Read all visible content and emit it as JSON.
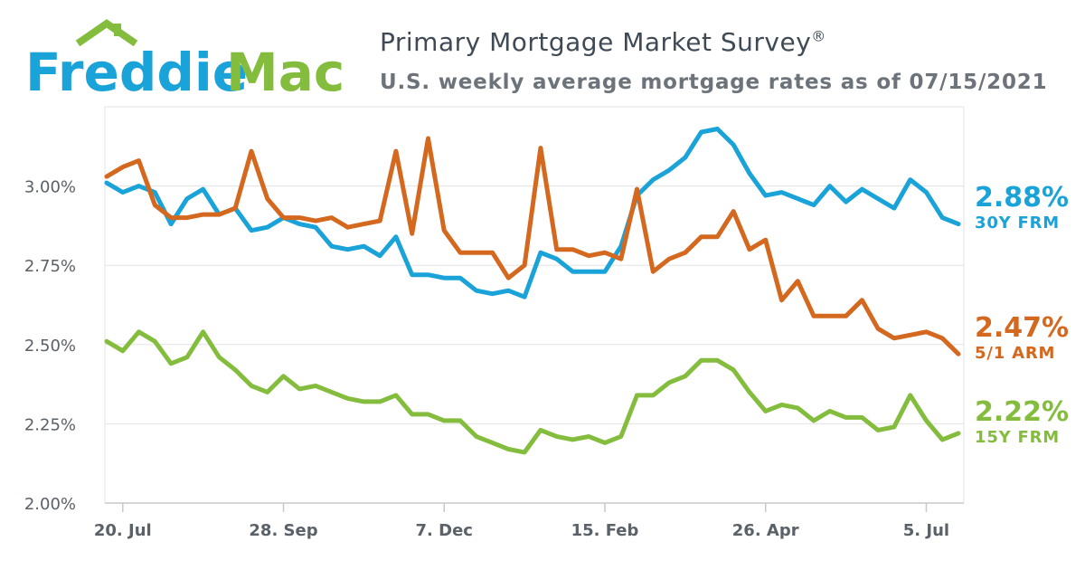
{
  "logo": {
    "text_a": "Freddie",
    "text_b": "Mac"
  },
  "header": {
    "title": "Primary Mortgage Market Survey",
    "title_mark": "®",
    "subtitle": "U.S. weekly average mortgage rates as of 07/15/2021"
  },
  "colors": {
    "frm30": "#1aa3d8",
    "arm51": "#d4681f",
    "frm15": "#84bd3d",
    "logo_blue": "#1aa3d8",
    "logo_green": "#84bd3d",
    "grid": "#e3e3e3",
    "tick": "#5b6168"
  },
  "end_labels": [
    {
      "value": "2.88%",
      "label": "30Y FRM",
      "color": "#1aa3d8"
    },
    {
      "value": "2.47%",
      "label": "5/1 ARM",
      "color": "#d4681f"
    },
    {
      "value": "2.22%",
      "label": "15Y FRM",
      "color": "#84bd3d"
    }
  ],
  "chart_data": {
    "type": "line",
    "title": "Primary Mortgage Market Survey",
    "subtitle": "U.S. weekly average mortgage rates as of 07/15/2021",
    "xlabel": "",
    "ylabel": "",
    "ylim": [
      2.0,
      3.25
    ],
    "yticks": [
      2.0,
      2.25,
      2.5,
      2.75,
      3.0
    ],
    "ytick_labels": [
      "2.00%",
      "2.25%",
      "2.50%",
      "2.75%",
      "3.00%"
    ],
    "grid": true,
    "weeks": 53,
    "xticks": [
      {
        "index": 1,
        "label": "20. Jul"
      },
      {
        "index": 11,
        "label": "28. Sep"
      },
      {
        "index": 21,
        "label": "7. Dec"
      },
      {
        "index": 31,
        "label": "15. Feb"
      },
      {
        "index": 41,
        "label": "26. Apr"
      },
      {
        "index": 51,
        "label": "5. Jul"
      }
    ],
    "series": [
      {
        "name": "30Y FRM",
        "color": "#1aa3d8",
        "values": [
          3.01,
          2.98,
          3.0,
          2.98,
          2.88,
          2.96,
          2.99,
          2.91,
          2.93,
          2.86,
          2.87,
          2.9,
          2.88,
          2.87,
          2.81,
          2.8,
          2.81,
          2.78,
          2.84,
          2.72,
          2.72,
          2.71,
          2.71,
          2.67,
          2.66,
          2.67,
          2.65,
          2.79,
          2.77,
          2.73,
          2.73,
          2.73,
          2.81,
          2.97,
          3.02,
          3.05,
          3.09,
          3.17,
          3.18,
          3.13,
          3.04,
          2.97,
          2.98,
          2.96,
          2.94,
          3.0,
          2.95,
          2.99,
          2.96,
          2.93,
          3.02,
          2.98,
          2.9,
          2.88
        ]
      },
      {
        "name": "5/1 ARM",
        "color": "#d4681f",
        "values": [
          3.03,
          3.06,
          3.08,
          2.94,
          2.9,
          2.9,
          2.91,
          2.91,
          2.93,
          3.11,
          2.96,
          2.9,
          2.9,
          2.89,
          2.9,
          2.87,
          2.88,
          2.89,
          3.11,
          2.85,
          3.15,
          2.86,
          2.79,
          2.79,
          2.79,
          2.71,
          2.75,
          3.12,
          2.8,
          2.8,
          2.78,
          2.79,
          2.77,
          2.99,
          2.73,
          2.77,
          2.79,
          2.84,
          2.84,
          2.92,
          2.8,
          2.83,
          2.64,
          2.7,
          2.59,
          2.59,
          2.59,
          2.64,
          2.55,
          2.52,
          2.53,
          2.54,
          2.52,
          2.47
        ]
      },
      {
        "name": "15Y FRM",
        "color": "#84bd3d",
        "values": [
          2.51,
          2.48,
          2.54,
          2.51,
          2.44,
          2.46,
          2.54,
          2.46,
          2.42,
          2.37,
          2.35,
          2.4,
          2.36,
          2.37,
          2.35,
          2.33,
          2.32,
          2.32,
          2.34,
          2.28,
          2.28,
          2.26,
          2.26,
          2.21,
          2.19,
          2.17,
          2.16,
          2.23,
          2.21,
          2.2,
          2.21,
          2.19,
          2.21,
          2.34,
          2.34,
          2.38,
          2.4,
          2.45,
          2.45,
          2.42,
          2.35,
          2.29,
          2.31,
          2.3,
          2.26,
          2.29,
          2.27,
          2.27,
          2.23,
          2.24,
          2.34,
          2.26,
          2.2,
          2.22
        ]
      }
    ]
  }
}
